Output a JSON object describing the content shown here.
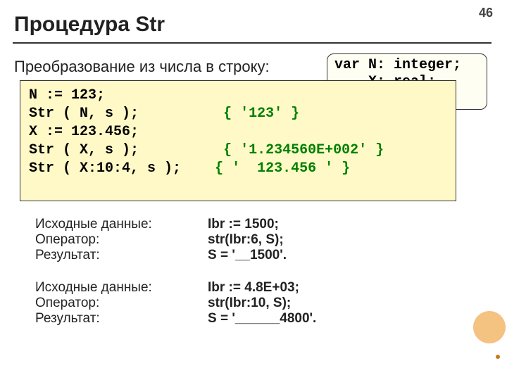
{
  "page_number": "46",
  "title": "Процедура Str",
  "subtitle": "Преобразование из числа в строку:",
  "var_box": "var N: integer;\n    X: real;\n    s: string;",
  "code": {
    "l1": "N := 123;",
    "l2a": "Str ( N, s );",
    "l2b": "{ '123' }",
    "l3": "X := 123.456;",
    "l4a": "Str ( X, s );",
    "l4b": "{ '1.234560E+002' }",
    "l5a": "Str ( X:10:4, s );",
    "l5b": "{ '  123.456 ' }"
  },
  "labels": {
    "src": "Исходные данные:",
    "op": "Оператор:",
    "res": "Результат:"
  },
  "ex1": {
    "src": "Ibr := 1500;",
    "op": "str(Ibr:6, S);",
    "res": "S = '__1500'."
  },
  "ex2": {
    "src": "Ibr := 4.8E+03;",
    "op": "str(Ibr:10, S);",
    "res": "S = '______4800'."
  },
  "colors": {
    "code_bg": "#fff9c8",
    "var_bg": "#fffef2",
    "comment": "#008000",
    "accent_circle": "#f0a84c"
  }
}
